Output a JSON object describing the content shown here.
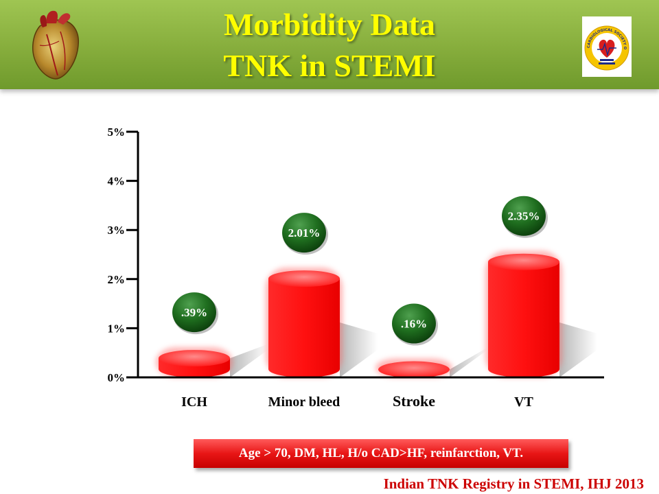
{
  "slide": {
    "title_line1": "Morbidity Data",
    "title_line2": "TNK in STEMI",
    "banner_text": "Age > 70, DM, HL, H/o CAD>HF, reinfarction, VT.",
    "citation": "Indian  TNK Registry in STEMI, IHJ 2013",
    "logo_text": "CARDIOLOGICAL SOCIETY OF INDIA",
    "colors": {
      "header": "#86ad3c",
      "title": "#ffff00",
      "bar": "#ff1a1a",
      "bubble": "#1d6b1d",
      "banner": "#e81616",
      "citation": "#cc0000"
    }
  },
  "chart_data": {
    "type": "bar",
    "title": "",
    "xlabel": "",
    "ylabel": "",
    "categories": [
      "ICH",
      "Minor bleed",
      "Stroke",
      "VT"
    ],
    "values": [
      0.39,
      2.01,
      0.16,
      2.35
    ],
    "data_labels": [
      ".39%",
      "2.01%",
      ".16%",
      "2.35%"
    ],
    "ylim": [
      0,
      5
    ],
    "yticks": [
      0,
      1,
      2,
      3,
      4,
      5
    ],
    "ytick_labels": [
      "0%",
      "1%",
      "2%",
      "3%",
      "4%",
      "5%"
    ],
    "grid": false,
    "legend": "none"
  }
}
